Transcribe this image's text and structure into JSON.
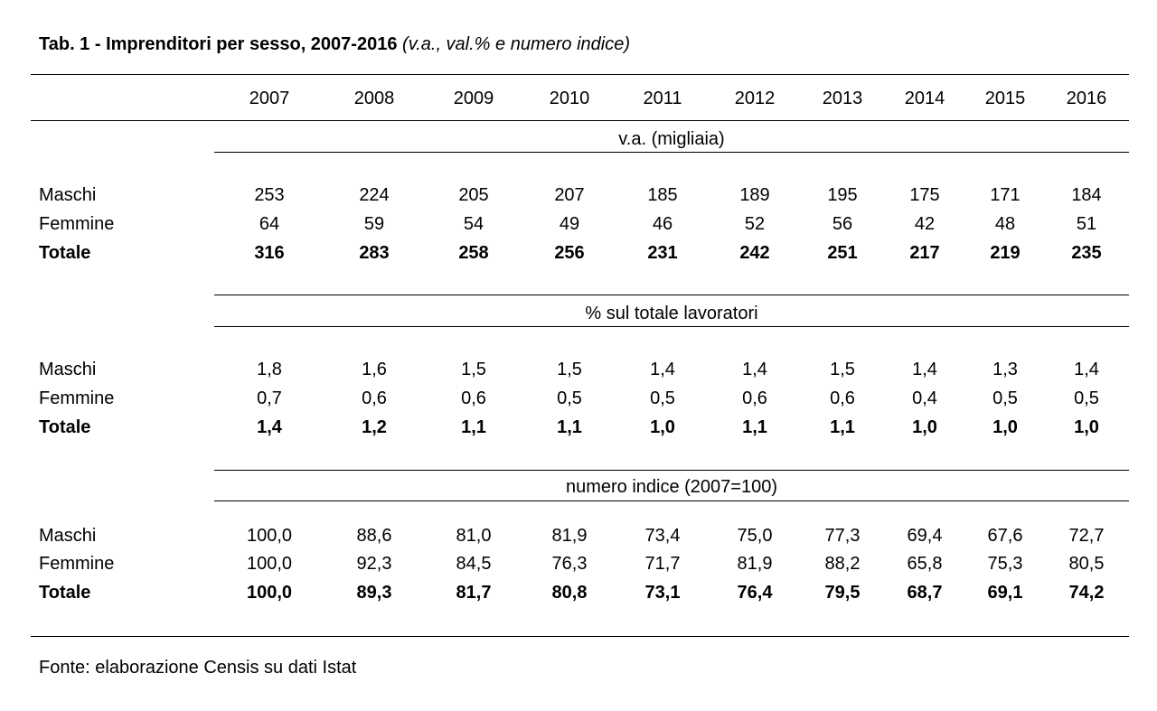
{
  "title": {
    "main": "Tab. 1 - Imprenditori per sesso, 2007-2016",
    "sub": "(v.a., val.% e numero indice)"
  },
  "years": [
    "2007",
    "2008",
    "2009",
    "2010",
    "2011",
    "2012",
    "2013",
    "2014",
    "2015",
    "2016"
  ],
  "sections": [
    {
      "title": "v.a. (migliaia)",
      "rows": [
        {
          "label": "Maschi",
          "values": [
            "253",
            "224",
            "205",
            "207",
            "185",
            "189",
            "195",
            "175",
            "171",
            "184"
          ]
        },
        {
          "label": "Femmine",
          "values": [
            "64",
            "59",
            "54",
            "49",
            "46",
            "52",
            "56",
            "42",
            "48",
            "51"
          ]
        },
        {
          "label": "Totale",
          "values": [
            "316",
            "283",
            "258",
            "256",
            "231",
            "242",
            "251",
            "217",
            "219",
            "235"
          ]
        }
      ]
    },
    {
      "title": "% sul totale lavoratori",
      "rows": [
        {
          "label": "Maschi",
          "values": [
            "1,8",
            "1,6",
            "1,5",
            "1,5",
            "1,4",
            "1,4",
            "1,5",
            "1,4",
            "1,3",
            "1,4"
          ]
        },
        {
          "label": "Femmine",
          "values": [
            "0,7",
            "0,6",
            "0,6",
            "0,5",
            "0,5",
            "0,6",
            "0,6",
            "0,4",
            "0,5",
            "0,5"
          ]
        },
        {
          "label": "Totale",
          "values": [
            "1,4",
            "1,2",
            "1,1",
            "1,1",
            "1,0",
            "1,1",
            "1,1",
            "1,0",
            "1,0",
            "1,0"
          ]
        }
      ]
    },
    {
      "title": "numero indice (2007=100)",
      "rows": [
        {
          "label": "Maschi",
          "values": [
            "100,0",
            "88,6",
            "81,0",
            "81,9",
            "73,4",
            "75,0",
            "77,3",
            "69,4",
            "67,6",
            "72,7"
          ]
        },
        {
          "label": "Femmine",
          "values": [
            "100,0",
            "92,3",
            "84,5",
            "76,3",
            "71,7",
            "81,9",
            "88,2",
            "65,8",
            "75,3",
            "80,5"
          ]
        },
        {
          "label": "Totale",
          "values": [
            "100,0",
            "89,3",
            "81,7",
            "80,8",
            "73,1",
            "76,4",
            "79,5",
            "68,7",
            "69,1",
            "74,2"
          ]
        }
      ]
    }
  ],
  "source": "Fonte: elaborazione Censis su dati Istat"
}
